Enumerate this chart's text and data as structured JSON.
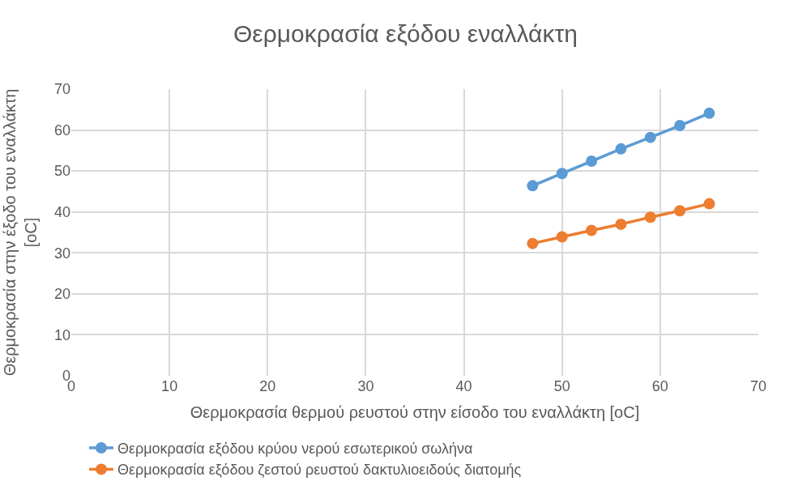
{
  "chart_data": {
    "type": "line",
    "title": "Θερμοκρασία εξόδου εναλλάκτη",
    "xlabel": "Θερμοκρασία θερμού ρευστού στην είσοδο του εναλλάκτη [oC]",
    "ylabel": "Θερμοκρασία στην έξοδο του εναλλάκτη [oC]",
    "x": [
      47,
      50,
      53,
      56,
      59,
      62,
      65
    ],
    "series": [
      {
        "name": "Θερμοκρασία εξόδου κρύου νερού εσωτερικού σωλήνα",
        "color": "#5b9bd5",
        "values": [
          46.4,
          49.4,
          52.4,
          55.4,
          58.2,
          61.1,
          64.1
        ]
      },
      {
        "name": "Θερμοκρασία εξόδου ζεστού ρευστού δακτυλιοειδούς διατομής",
        "color": "#ed7d31",
        "values": [
          32.3,
          33.9,
          35.5,
          37.0,
          38.7,
          40.3,
          42.0
        ]
      }
    ],
    "xlim": [
      0,
      70
    ],
    "xticks": [
      0,
      10,
      20,
      30,
      40,
      50,
      60,
      70
    ],
    "ylim": [
      0,
      70
    ],
    "yticks": [
      0,
      10,
      20,
      30,
      40,
      50,
      60,
      70
    ],
    "grid": true,
    "legend": "bottom",
    "marker": "circle",
    "line_style": "solid"
  }
}
